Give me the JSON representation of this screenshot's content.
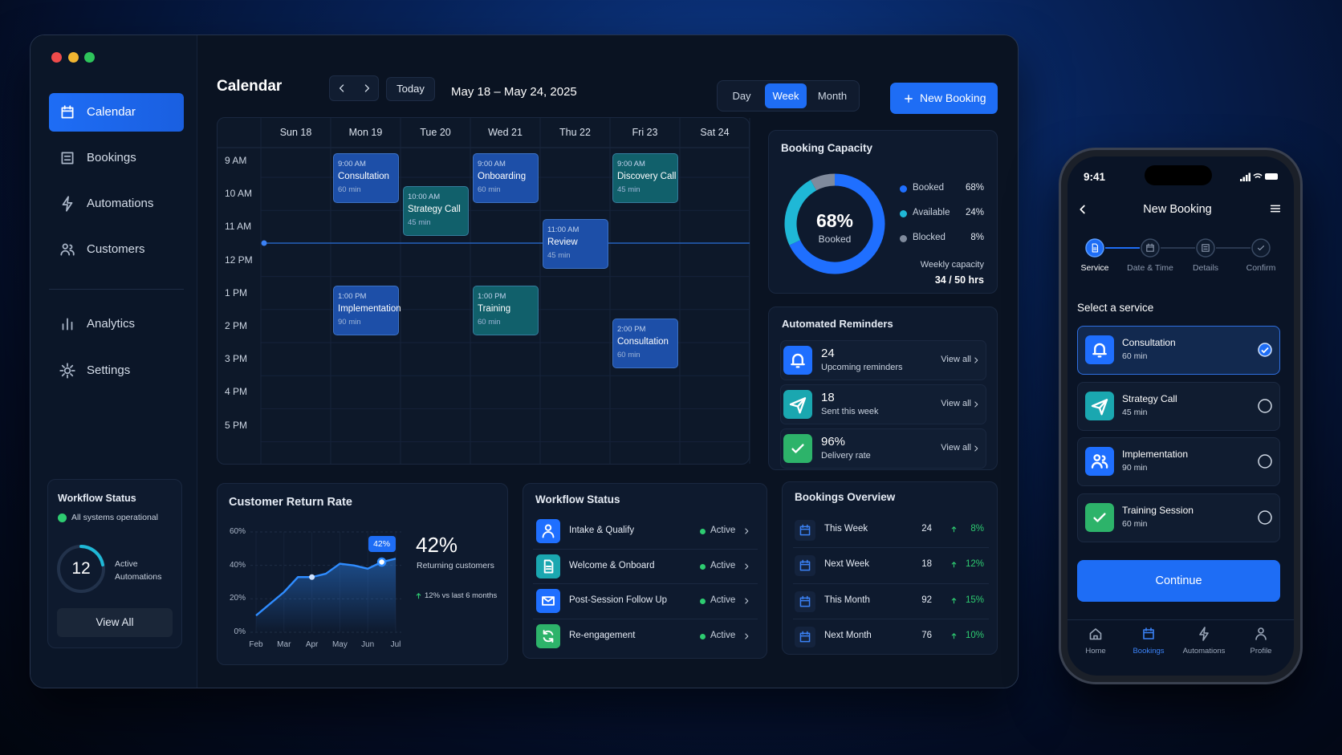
{
  "sidebar": {
    "nav": [
      "Calendar",
      "Bookings",
      "Automations",
      "Customers",
      "Analytics",
      "Settings"
    ],
    "active": "Calendar",
    "workflow": {
      "title": "Workflow Status",
      "status": "All systems operational",
      "count": 12,
      "label": "Active Automations",
      "button": "View All"
    }
  },
  "header": {
    "title": "Calendar",
    "today": "Today",
    "range": "May 18 – May 24, 2025",
    "views": [
      "Day",
      "Week",
      "Month"
    ],
    "active_view": "Week",
    "new_booking": "New Booking"
  },
  "calendar": {
    "hours": [
      "9 AM",
      "10 AM",
      "11 AM",
      "12 PM",
      "1 PM",
      "2 PM",
      "3 PM",
      "4 PM",
      "5 PM"
    ],
    "days": [
      {
        "label": "Sun 18",
        "events": []
      },
      {
        "label": "Mon 19",
        "events": [
          {
            "time": "9:00 AM",
            "title": "Consultation",
            "duration": "60 min",
            "color": "#1d4fa8"
          },
          {
            "time": "1:00 PM",
            "title": "Implementation",
            "duration": "90 min",
            "color": "#1d4fa8"
          }
        ]
      },
      {
        "label": "Tue 20",
        "events": [
          {
            "time": "10:00 AM",
            "title": "Strategy Call",
            "duration": "45 min",
            "color": "#11606b"
          }
        ]
      },
      {
        "label": "Wed 21",
        "events": [
          {
            "time": "9:00 AM",
            "title": "Onboarding",
            "duration": "60 min",
            "color": "#1d4fa8"
          },
          {
            "time": "1:00 PM",
            "title": "Training",
            "duration": "60 min",
            "color": "#11606b"
          }
        ]
      },
      {
        "label": "Thu 22",
        "events": [
          {
            "time": "11:00 AM",
            "title": "Review",
            "duration": "45 min",
            "color": "#1d4fa8"
          }
        ]
      },
      {
        "label": "Fri 23",
        "events": [
          {
            "time": "9:00 AM",
            "title": "Discovery Call",
            "duration": "45 min",
            "color": "#11606b"
          },
          {
            "time": "2:00 PM",
            "title": "Consultation",
            "duration": "60 min",
            "color": "#1d4fa8"
          }
        ]
      },
      {
        "label": "Sat 24",
        "events": []
      }
    ]
  },
  "chart_data": [
    {
      "type": "donut",
      "title": "Booking Capacity",
      "categories": [
        "Booked",
        "Available",
        "Blocked"
      ],
      "values": [
        68,
        24,
        8
      ],
      "value_labels": [
        "68%",
        "24%",
        "8%"
      ],
      "colors": [
        "#1f6fff",
        "#1fb8d6",
        "#7f8a9c"
      ],
      "note_label": "Weekly capacity",
      "note_value": "34 / 50 hrs"
    },
    {
      "type": "line",
      "title": "Customer Return Rate",
      "categories": [
        "Feb",
        null,
        "Mar",
        null,
        "Apr",
        null,
        "May",
        null,
        "Jun",
        null,
        "Jul"
      ],
      "values": [
        10,
        17,
        24,
        33,
        33,
        35,
        41,
        40,
        38,
        42,
        44
      ],
      "value_labels": [
        null,
        null,
        null,
        null,
        null,
        null,
        null,
        null,
        null,
        "42%",
        null
      ],
      "color": "#2f8cff",
      "ylim": [
        0,
        60
      ],
      "yticks": [
        {
          "value": 0,
          "label": "0%"
        },
        {
          "value": 20,
          "label": "20%"
        },
        {
          "value": 40,
          "label": "40%"
        },
        {
          "value": 60,
          "label": "60%"
        }
      ],
      "grid": true,
      "area": true,
      "summary_value": "42%",
      "summary_label": "Returning customers",
      "summary_change": "12% vs last 6 months"
    }
  ],
  "reminders": {
    "title": "Automated Reminders",
    "items": [
      {
        "value": 24,
        "label": "Upcoming reminders",
        "action": "View all",
        "color": "#1f6fff"
      },
      {
        "value": 18,
        "label": "Sent this week",
        "action": "View all",
        "color": "#1aa7b0"
      },
      {
        "value": "96%",
        "label": "Delivery rate",
        "action": "View all",
        "color": "#2db36a"
      }
    ]
  },
  "workflow_status": {
    "title": "Workflow Status",
    "items": [
      {
        "name": "Intake & Qualify",
        "status": "Active",
        "color": "#1f6fff"
      },
      {
        "name": "Welcome & Onboard",
        "status": "Active",
        "color": "#1aa7b0"
      },
      {
        "name": "Post-Session Follow Up",
        "status": "Active",
        "color": "#1f6fff"
      },
      {
        "name": "Re-engagement",
        "status": "Active",
        "color": "#2db36a"
      }
    ]
  },
  "bookings_overview": {
    "title": "Bookings Overview",
    "rows": [
      {
        "period": "This Week",
        "count": 24,
        "change": "8%"
      },
      {
        "period": "Next Week",
        "count": 18,
        "change": "12%"
      },
      {
        "period": "This Month",
        "count": 92,
        "change": "15%"
      },
      {
        "period": "Next Month",
        "count": 76,
        "change": "10%"
      }
    ]
  },
  "phone": {
    "time": "9:41",
    "title": "New Booking",
    "steps": [
      "Service",
      "Date & Time",
      "Details",
      "Confirm"
    ],
    "active_step": "Service",
    "section": "Select a service",
    "services": [
      {
        "name": "Consultation",
        "duration": "60 min",
        "selected": true,
        "color": "#1f6fff"
      },
      {
        "name": "Strategy Call",
        "duration": "45 min",
        "selected": false,
        "color": "#1aa7b0"
      },
      {
        "name": "Implementation",
        "duration": "90 min",
        "selected": false,
        "color": "#1f6fff"
      },
      {
        "name": "Training Session",
        "duration": "60 min",
        "selected": false,
        "color": "#2db36a"
      }
    ],
    "button": "Continue",
    "tabs": [
      "Home",
      "Bookings",
      "Automations",
      "Profile"
    ],
    "active_tab": "Bookings"
  }
}
